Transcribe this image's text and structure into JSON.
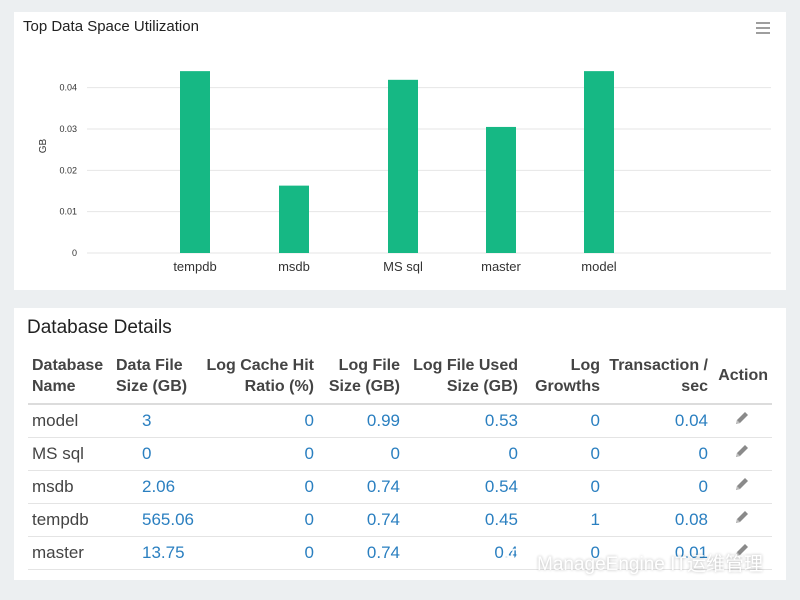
{
  "chart_panel": {
    "title": "Top Data Space Utilization",
    "menu_icon": "hamburger-menu-icon"
  },
  "chart_data": {
    "type": "bar",
    "title": "Top Data Space Utilization",
    "categories": [
      "tempdb",
      "msdb",
      "MS sql",
      "master",
      "model"
    ],
    "values": [
      0.044,
      0.0163,
      0.0419,
      0.0305,
      0.044
    ],
    "ylabel": "GB",
    "xlabel": "",
    "ylim": [
      0,
      0.045
    ],
    "yticks": [
      "0",
      "0.01",
      "0.02",
      "0.03",
      "0.04"
    ],
    "grid": true,
    "bar_color": "#16b884"
  },
  "details": {
    "title": "Database Details",
    "columns": [
      "Database Name",
      "Data File Size (GB)",
      "Log Cache Hit Ratio (%)",
      "Log File Size (GB)",
      "Log File Used Size (GB)",
      "Log Growths",
      "Transaction / sec",
      "Action"
    ],
    "rows": [
      {
        "name": "model",
        "data_size": "3",
        "cache_hit": "0",
        "log_size": "0.99",
        "log_used": "0.53",
        "growths": "0",
        "tps": "0.04"
      },
      {
        "name": "MS sql",
        "data_size": "0",
        "cache_hit": "0",
        "log_size": "0",
        "log_used": "0",
        "growths": "0",
        "tps": "0"
      },
      {
        "name": "msdb",
        "data_size": "2.06",
        "cache_hit": "0",
        "log_size": "0.74",
        "log_used": "0.54",
        "growths": "0",
        "tps": "0"
      },
      {
        "name": "tempdb",
        "data_size": "565.06",
        "cache_hit": "0",
        "log_size": "0.74",
        "log_used": "0.45",
        "growths": "1",
        "tps": "0.08"
      },
      {
        "name": "master",
        "data_size": "13.75",
        "cache_hit": "0",
        "log_size": "0.74",
        "log_used": "0.4",
        "growths": "0",
        "tps": "0.01"
      }
    ],
    "action_icon": "pencil-edit-icon"
  },
  "watermark": {
    "text": "ManageEngine IT运维管理",
    "icon": "wechat-icon"
  }
}
